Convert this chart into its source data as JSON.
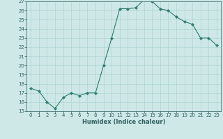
{
  "xlabel": "Humidex (Indice chaleur)",
  "x": [
    0,
    1,
    2,
    3,
    4,
    5,
    6,
    7,
    8,
    9,
    10,
    11,
    12,
    13,
    14,
    15,
    16,
    17,
    18,
    19,
    20,
    21,
    22,
    23
  ],
  "y": [
    17.5,
    17.2,
    16.0,
    15.3,
    16.5,
    17.0,
    16.7,
    17.0,
    17.0,
    20.0,
    23.0,
    26.2,
    26.2,
    26.3,
    27.2,
    27.0,
    26.2,
    26.0,
    25.3,
    24.8,
    24.5,
    23.0,
    23.0,
    22.2
  ],
  "line_color": "#2e7d6e",
  "bg_color": "#cde8e6",
  "grid_color": "#b0d5d2",
  "tick_label_color": "#2e5f5f",
  "ylim": [
    15,
    27
  ],
  "yticks": [
    15,
    16,
    17,
    18,
    19,
    20,
    21,
    22,
    23,
    24,
    25,
    26,
    27
  ],
  "xticks": [
    0,
    1,
    2,
    3,
    4,
    5,
    6,
    7,
    8,
    9,
    10,
    11,
    12,
    13,
    14,
    15,
    16,
    17,
    18,
    19,
    20,
    21,
    22,
    23
  ]
}
